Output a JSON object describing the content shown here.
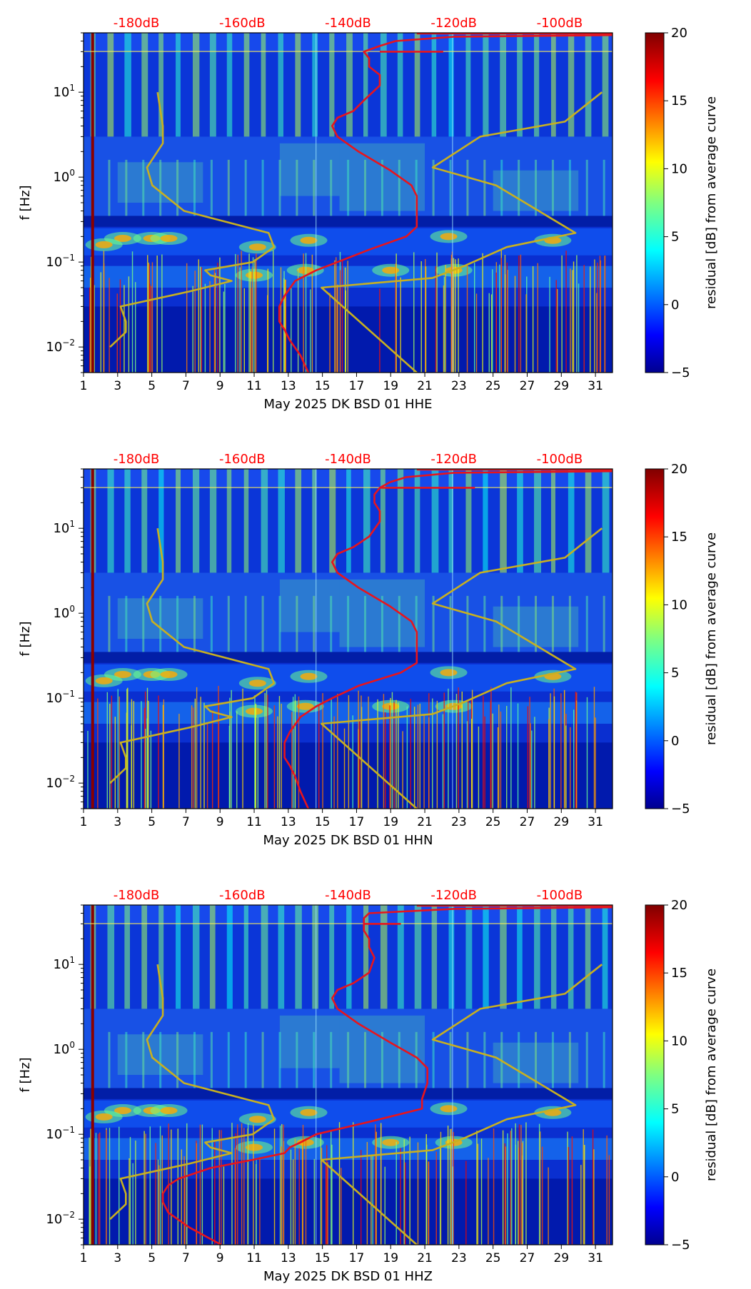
{
  "colors": {
    "psd_curve": "#e8141c",
    "noise_model": "#c8b020",
    "db_label": "#ff0000",
    "axis": "#000000"
  },
  "colormap": "jet",
  "chart_data": [
    {
      "type": "heatmap",
      "channel": "HHE",
      "xlabel": "May 2025 DK BSD 01 HHE",
      "ylabel": "f [Hz]",
      "x_ticks": [
        "1",
        "3",
        "5",
        "7",
        "9",
        "11",
        "13",
        "15",
        "17",
        "19",
        "21",
        "23",
        "25",
        "27",
        "29",
        "31"
      ],
      "xlim": [
        1,
        32
      ],
      "y_scale": "log",
      "ylim": [
        0.005,
        50
      ],
      "y_ticks": [
        {
          "value": 0.01,
          "base": "10",
          "exp": "−2"
        },
        {
          "value": 0.1,
          "base": "10",
          "exp": "−1"
        },
        {
          "value": 1,
          "base": "10",
          "exp": "0"
        },
        {
          "value": 10,
          "base": "10",
          "exp": "1"
        }
      ],
      "top_axis": {
        "labels": [
          "-180dB",
          "-160dB",
          "-140dB",
          "-120dB",
          "-100dB"
        ],
        "values": [
          -180,
          -160,
          -140,
          -120,
          -100
        ],
        "xlim": [
          -190,
          -90
        ]
      },
      "colorbar": {
        "label": "residual [dB] from average curve",
        "range": [
          -5,
          20
        ],
        "ticks": [
          "−5",
          "0",
          "5",
          "10",
          "15",
          "20"
        ],
        "tick_values": [
          -5,
          0,
          5,
          10,
          15,
          20
        ]
      },
      "psd_curve": [
        [
          -147.5,
          0.005
        ],
        [
          -149,
          0.008
        ],
        [
          -151,
          0.012
        ],
        [
          -152,
          0.016
        ],
        [
          -153,
          0.02
        ],
        [
          -153,
          0.03
        ],
        [
          -152,
          0.04
        ],
        [
          -150,
          0.06
        ],
        [
          -146,
          0.08
        ],
        [
          -142,
          0.1
        ],
        [
          -136,
          0.14
        ],
        [
          -129,
          0.2
        ],
        [
          -127,
          0.26
        ],
        [
          -127,
          0.4
        ],
        [
          -127,
          0.6
        ],
        [
          -128,
          0.8
        ],
        [
          -132,
          1.2
        ],
        [
          -138,
          2
        ],
        [
          -142,
          3
        ],
        [
          -143,
          4
        ],
        [
          -142,
          5
        ],
        [
          -139,
          6
        ],
        [
          -137,
          8
        ],
        [
          -134,
          12
        ],
        [
          -134,
          16
        ],
        [
          -136,
          20
        ],
        [
          -136,
          25
        ],
        [
          -137,
          30
        ],
        [
          -134,
          35
        ],
        [
          -131,
          40
        ],
        [
          -120,
          45
        ],
        [
          -90,
          47
        ]
      ],
      "psd_branch": [
        [
          -134,
          30
        ],
        [
          -122,
          30
        ]
      ],
      "noise_model": [
        [
          [
            -185,
            0.01
          ],
          [
            -182,
            0.015
          ],
          [
            -182,
            0.02
          ],
          [
            -183,
            0.03
          ],
          [
            -170,
            0.045
          ],
          [
            -162,
            0.06
          ],
          [
            -166,
            0.07
          ],
          [
            -167,
            0.08
          ],
          [
            -158,
            0.1
          ],
          [
            -154,
            0.15
          ],
          [
            -155,
            0.22
          ],
          [
            -171,
            0.4
          ],
          [
            -177,
            0.8
          ],
          [
            -178,
            1.3
          ],
          [
            -175,
            2.5
          ],
          [
            -175,
            4
          ],
          [
            -176,
            10
          ]
        ],
        [
          [
            -127,
            0.005
          ],
          [
            -145,
            0.05
          ],
          [
            -124,
            0.065
          ],
          [
            -118,
            0.09
          ],
          [
            -110,
            0.15
          ],
          [
            -97,
            0.22
          ],
          [
            -112,
            0.8
          ],
          [
            -124,
            1.3
          ],
          [
            -115,
            3
          ],
          [
            -99,
            4.5
          ],
          [
            -92,
            10
          ]
        ]
      ]
    },
    {
      "type": "heatmap",
      "channel": "HHN",
      "xlabel": "May 2025 DK BSD 01 HHN",
      "ylabel": "f [Hz]",
      "x_ticks": [
        "1",
        "3",
        "5",
        "7",
        "9",
        "11",
        "13",
        "15",
        "17",
        "19",
        "21",
        "23",
        "25",
        "27",
        "29",
        "31"
      ],
      "xlim": [
        1,
        32
      ],
      "y_scale": "log",
      "ylim": [
        0.005,
        50
      ],
      "y_ticks": [
        {
          "value": 0.01,
          "base": "10",
          "exp": "−2"
        },
        {
          "value": 0.1,
          "base": "10",
          "exp": "−1"
        },
        {
          "value": 1,
          "base": "10",
          "exp": "0"
        },
        {
          "value": 10,
          "base": "10",
          "exp": "1"
        }
      ],
      "top_axis": {
        "labels": [
          "-180dB",
          "-160dB",
          "-140dB",
          "-120dB",
          "-100dB"
        ],
        "values": [
          -180,
          -160,
          -140,
          -120,
          -100
        ],
        "xlim": [
          -190,
          -90
        ]
      },
      "colorbar": {
        "label": "residual [dB] from average curve",
        "range": [
          -5,
          20
        ],
        "ticks": [
          "−5",
          "0",
          "5",
          "10",
          "15",
          "20"
        ],
        "tick_values": [
          -5,
          0,
          5,
          10,
          15,
          20
        ]
      },
      "psd_curve": [
        [
          -147.5,
          0.005
        ],
        [
          -149,
          0.008
        ],
        [
          -150,
          0.012
        ],
        [
          -151,
          0.016
        ],
        [
          -152,
          0.02
        ],
        [
          -152,
          0.03
        ],
        [
          -151,
          0.04
        ],
        [
          -149,
          0.06
        ],
        [
          -146,
          0.08
        ],
        [
          -143,
          0.1
        ],
        [
          -138,
          0.14
        ],
        [
          -130,
          0.2
        ],
        [
          -127,
          0.26
        ],
        [
          -127,
          0.4
        ],
        [
          -127,
          0.6
        ],
        [
          -128,
          0.8
        ],
        [
          -132,
          1.2
        ],
        [
          -138,
          2
        ],
        [
          -142,
          3
        ],
        [
          -143,
          4
        ],
        [
          -142,
          5
        ],
        [
          -139,
          6
        ],
        [
          -136,
          8
        ],
        [
          -134,
          12
        ],
        [
          -134,
          16
        ],
        [
          -135,
          20
        ],
        [
          -135,
          25
        ],
        [
          -134,
          30
        ],
        [
          -132,
          35
        ],
        [
          -129,
          40
        ],
        [
          -120,
          45
        ],
        [
          -90,
          47
        ]
      ],
      "psd_branch": [
        [
          -134,
          30
        ],
        [
          -116,
          30
        ]
      ],
      "noise_model": [
        [
          [
            -185,
            0.01
          ],
          [
            -182,
            0.015
          ],
          [
            -182,
            0.02
          ],
          [
            -183,
            0.03
          ],
          [
            -170,
            0.045
          ],
          [
            -162,
            0.06
          ],
          [
            -166,
            0.07
          ],
          [
            -167,
            0.08
          ],
          [
            -158,
            0.1
          ],
          [
            -154,
            0.15
          ],
          [
            -155,
            0.22
          ],
          [
            -171,
            0.4
          ],
          [
            -177,
            0.8
          ],
          [
            -178,
            1.3
          ],
          [
            -175,
            2.5
          ],
          [
            -175,
            4
          ],
          [
            -176,
            10
          ]
        ],
        [
          [
            -127,
            0.005
          ],
          [
            -145,
            0.05
          ],
          [
            -124,
            0.065
          ],
          [
            -118,
            0.09
          ],
          [
            -110,
            0.15
          ],
          [
            -97,
            0.22
          ],
          [
            -112,
            0.8
          ],
          [
            -124,
            1.3
          ],
          [
            -115,
            3
          ],
          [
            -99,
            4.5
          ],
          [
            -92,
            10
          ]
        ]
      ]
    },
    {
      "type": "heatmap",
      "channel": "HHZ",
      "xlabel": "May 2025 DK BSD 01 HHZ",
      "ylabel": "f [Hz]",
      "x_ticks": [
        "1",
        "3",
        "5",
        "7",
        "9",
        "11",
        "13",
        "15",
        "17",
        "19",
        "21",
        "23",
        "25",
        "27",
        "29",
        "31"
      ],
      "xlim": [
        1,
        32
      ],
      "y_scale": "log",
      "ylim": [
        0.005,
        50
      ],
      "y_ticks": [
        {
          "value": 0.01,
          "base": "10",
          "exp": "−2"
        },
        {
          "value": 0.1,
          "base": "10",
          "exp": "−1"
        },
        {
          "value": 1,
          "base": "10",
          "exp": "0"
        },
        {
          "value": 10,
          "base": "10",
          "exp": "1"
        }
      ],
      "top_axis": {
        "labels": [
          "-180dB",
          "-160dB",
          "-140dB",
          "-120dB",
          "-100dB"
        ],
        "values": [
          -180,
          -160,
          -140,
          -120,
          -100
        ],
        "xlim": [
          -190,
          -90
        ]
      },
      "colorbar": {
        "label": "residual [dB] from average curve",
        "range": [
          -5,
          20
        ],
        "ticks": [
          "−5",
          "0",
          "5",
          "10",
          "15",
          "20"
        ],
        "tick_values": [
          -5,
          0,
          5,
          10,
          15,
          20
        ]
      },
      "psd_curve": [
        [
          -164,
          0.005
        ],
        [
          -170,
          0.008
        ],
        [
          -174,
          0.012
        ],
        [
          -175,
          0.016
        ],
        [
          -175,
          0.02
        ],
        [
          -174,
          0.025
        ],
        [
          -172,
          0.03
        ],
        [
          -166,
          0.04
        ],
        [
          -158,
          0.05
        ],
        [
          -152,
          0.06
        ],
        [
          -151,
          0.07
        ],
        [
          -149,
          0.08
        ],
        [
          -146,
          0.1
        ],
        [
          -136,
          0.14
        ],
        [
          -126,
          0.2
        ],
        [
          -126,
          0.26
        ],
        [
          -125,
          0.4
        ],
        [
          -125,
          0.6
        ],
        [
          -127,
          0.8
        ],
        [
          -132,
          1.2
        ],
        [
          -138,
          2
        ],
        [
          -142,
          3
        ],
        [
          -143,
          4
        ],
        [
          -142,
          5
        ],
        [
          -139,
          6
        ],
        [
          -136,
          8
        ],
        [
          -135,
          12
        ],
        [
          -136,
          16
        ],
        [
          -136,
          20
        ],
        [
          -137,
          25
        ],
        [
          -137,
          30
        ],
        [
          -137,
          35
        ],
        [
          -136,
          40
        ],
        [
          -120,
          45
        ],
        [
          -90,
          47
        ]
      ],
      "psd_branch": [
        [
          -137,
          30
        ],
        [
          -130,
          30
        ]
      ],
      "noise_model": [
        [
          [
            -185,
            0.01
          ],
          [
            -182,
            0.015
          ],
          [
            -182,
            0.02
          ],
          [
            -183,
            0.03
          ],
          [
            -170,
            0.045
          ],
          [
            -162,
            0.06
          ],
          [
            -166,
            0.07
          ],
          [
            -167,
            0.08
          ],
          [
            -158,
            0.1
          ],
          [
            -154,
            0.15
          ],
          [
            -155,
            0.22
          ],
          [
            -171,
            0.4
          ],
          [
            -177,
            0.8
          ],
          [
            -178,
            1.3
          ],
          [
            -175,
            2.5
          ],
          [
            -175,
            4
          ],
          [
            -176,
            10
          ]
        ],
        [
          [
            -127,
            0.005
          ],
          [
            -145,
            0.05
          ],
          [
            -124,
            0.065
          ],
          [
            -118,
            0.09
          ],
          [
            -110,
            0.15
          ],
          [
            -97,
            0.22
          ],
          [
            -112,
            0.8
          ],
          [
            -124,
            1.3
          ],
          [
            -115,
            3
          ],
          [
            -99,
            4.5
          ],
          [
            -92,
            10
          ]
        ]
      ]
    }
  ]
}
